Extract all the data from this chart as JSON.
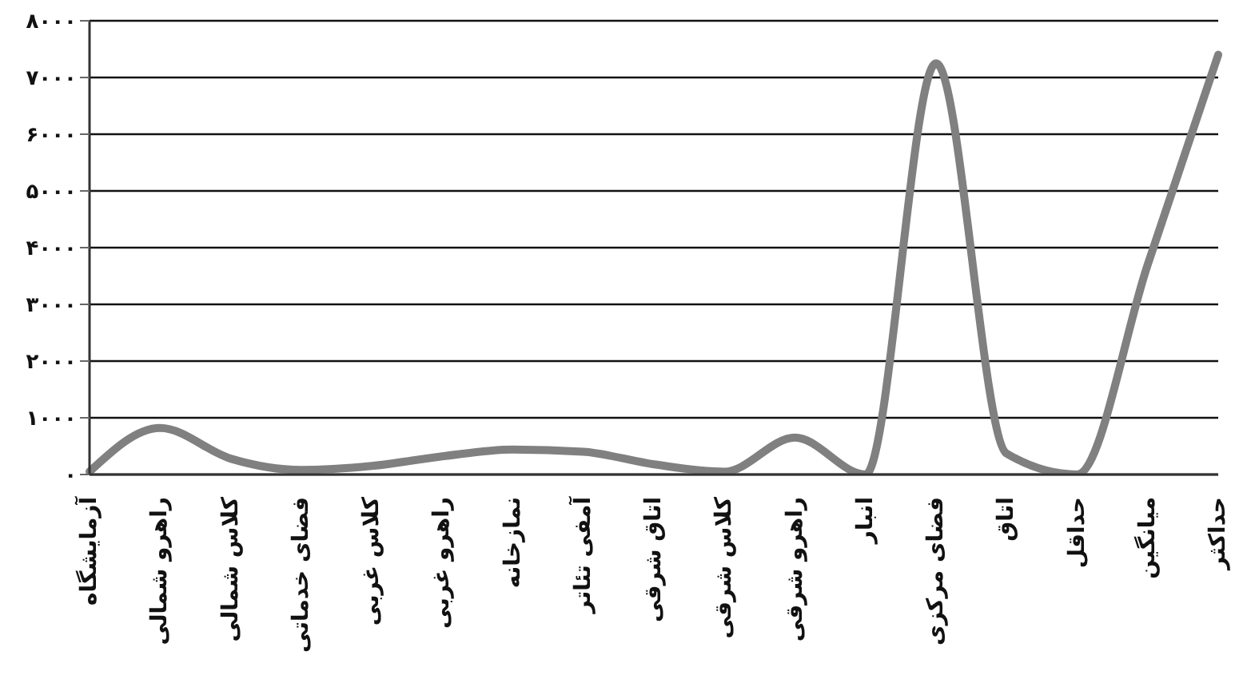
{
  "chart_data": {
    "type": "line",
    "categories": [
      "آزمایشگاه",
      "راهرو شمالی",
      "کلاس شمالی",
      "فضای خدماتی",
      "کلاس غربی",
      "راهرو غربی",
      "نمازخانه",
      "آمفی تئاتر",
      "اتاق شرقی",
      "کلاس شرقی",
      "راهرو شرقی",
      "انبار",
      "فضای مرکزی",
      "اتاق",
      "حداقل",
      "میانگین",
      "حداکثر"
    ],
    "series": [
      {
        "color": "#808080",
        "values": [
          50,
          820,
          280,
          80,
          150,
          320,
          440,
          400,
          180,
          50,
          650,
          0,
          7250,
          370,
          0,
          3700,
          7400
        ]
      }
    ],
    "ylim": [
      0,
      8000
    ],
    "yticks": [
      {
        "value": 0,
        "label": "۰"
      },
      {
        "value": 1000,
        "label": "۱۰۰۰"
      },
      {
        "value": 2000,
        "label": "۲۰۰۰"
      },
      {
        "value": 3000,
        "label": "۳۰۰۰"
      },
      {
        "value": 4000,
        "label": "۴۰۰۰"
      },
      {
        "value": 5000,
        "label": "۵۰۰۰"
      },
      {
        "value": 6000,
        "label": "۶۰۰۰"
      },
      {
        "value": 7000,
        "label": "۷۰۰۰"
      },
      {
        "value": 8000,
        "label": "۸۰۰۰"
      }
    ],
    "grid": "y",
    "marker": "none",
    "line_style": "solid"
  }
}
